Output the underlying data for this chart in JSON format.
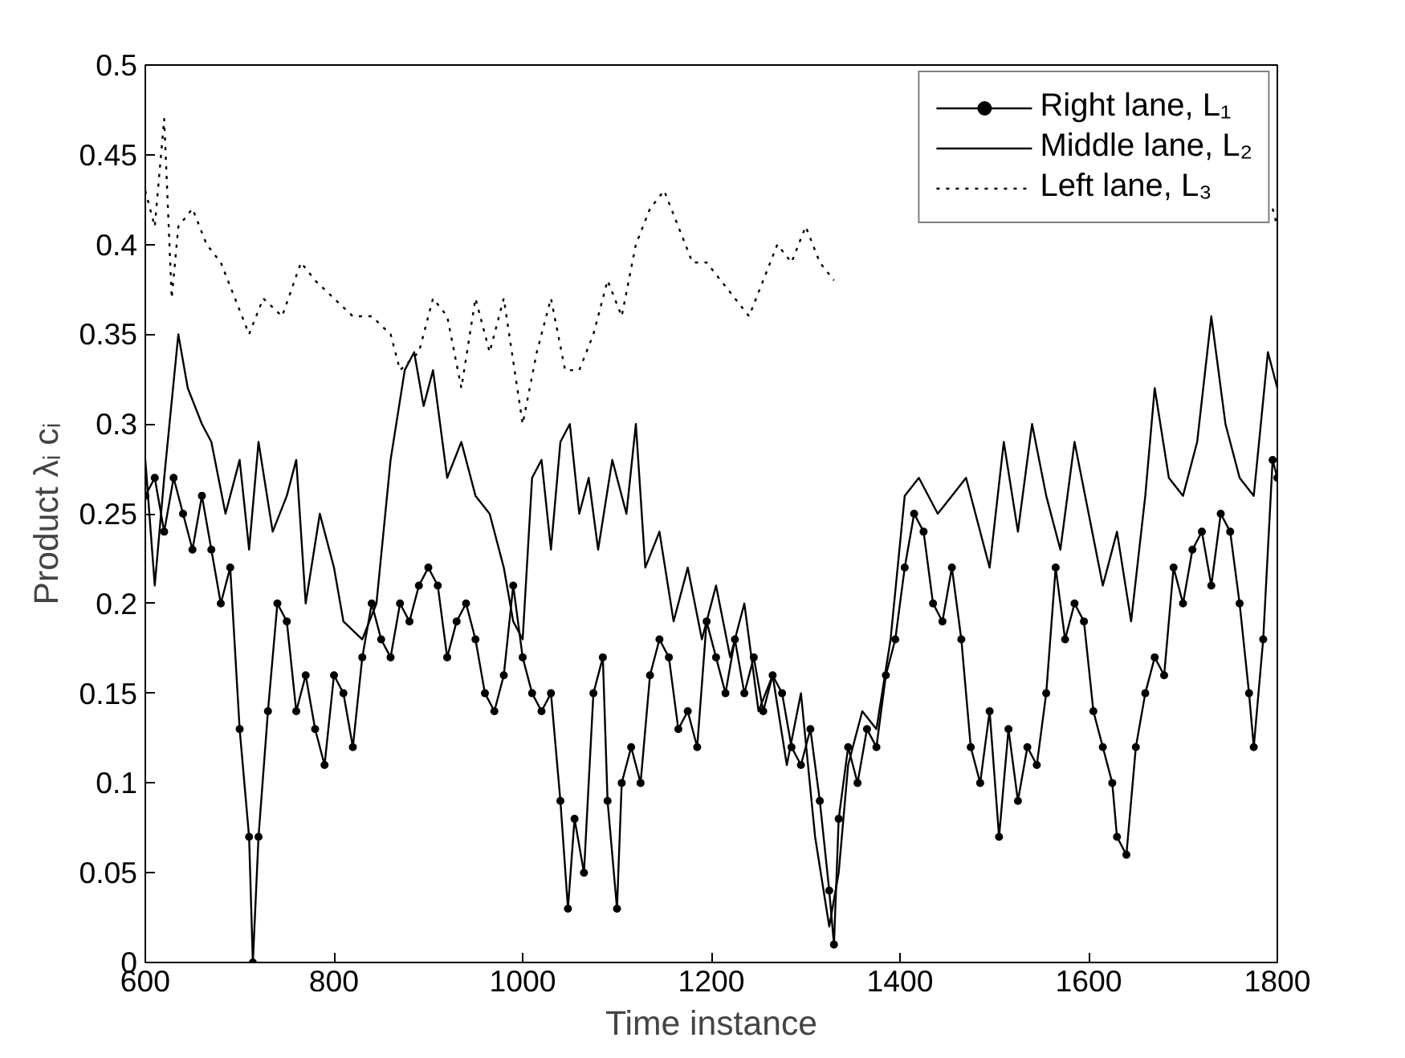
{
  "chart_data": {
    "type": "line",
    "xlabel": "Time instance",
    "ylabel": "Product λᵢ cᵢ",
    "xlim": [
      600,
      1800
    ],
    "ylim": [
      0,
      0.5
    ],
    "xticks": [
      600,
      800,
      1000,
      1200,
      1400,
      1600,
      1800
    ],
    "yticks": [
      0,
      0.05,
      0.1,
      0.15,
      0.2,
      0.25,
      0.3,
      0.35,
      0.4,
      0.45,
      0.5
    ],
    "grid": false,
    "legend": "top right",
    "series": [
      {
        "name": "Right lane, L₁",
        "color": "#000000",
        "marker": "circle",
        "line_style": "solid",
        "x": [
          600,
          610,
          620,
          630,
          640,
          650,
          660,
          670,
          680,
          690,
          700,
          710,
          714,
          720,
          730,
          740,
          750,
          760,
          770,
          780,
          790,
          800,
          810,
          820,
          830,
          840,
          850,
          860,
          870,
          880,
          890,
          900,
          910,
          920,
          930,
          940,
          950,
          960,
          970,
          980,
          990,
          1000,
          1010,
          1020,
          1030,
          1040,
          1048,
          1055,
          1065,
          1075,
          1085,
          1090,
          1100,
          1105,
          1115,
          1125,
          1135,
          1145,
          1155,
          1165,
          1175,
          1185,
          1195,
          1205,
          1215,
          1225,
          1235,
          1245,
          1255,
          1265,
          1275,
          1285,
          1295,
          1305,
          1315,
          1325,
          1330,
          1335,
          1345,
          1355,
          1365,
          1375,
          1385,
          1395,
          1405,
          1415,
          1425,
          1435,
          1445,
          1455,
          1465,
          1475,
          1485,
          1495,
          1505,
          1515,
          1525,
          1535,
          1545,
          1555,
          1565,
          1575,
          1585,
          1595,
          1605,
          1615,
          1625,
          1630,
          1640,
          1650,
          1660,
          1670,
          1680,
          1690,
          1700,
          1710,
          1720,
          1730,
          1740,
          1750,
          1760,
          1770,
          1775,
          1785,
          1795,
          1800
        ],
        "values": [
          0.26,
          0.27,
          0.24,
          0.27,
          0.25,
          0.23,
          0.26,
          0.23,
          0.2,
          0.22,
          0.13,
          0.07,
          0.0,
          0.07,
          0.14,
          0.2,
          0.19,
          0.14,
          0.16,
          0.13,
          0.11,
          0.16,
          0.15,
          0.12,
          0.17,
          0.2,
          0.18,
          0.17,
          0.2,
          0.19,
          0.21,
          0.22,
          0.21,
          0.17,
          0.19,
          0.2,
          0.18,
          0.15,
          0.14,
          0.16,
          0.21,
          0.17,
          0.15,
          0.14,
          0.15,
          0.09,
          0.03,
          0.08,
          0.05,
          0.15,
          0.17,
          0.09,
          0.03,
          0.1,
          0.12,
          0.1,
          0.16,
          0.18,
          0.17,
          0.13,
          0.14,
          0.12,
          0.19,
          0.17,
          0.15,
          0.18,
          0.15,
          0.17,
          0.14,
          0.16,
          0.15,
          0.12,
          0.11,
          0.13,
          0.09,
          0.04,
          0.01,
          0.08,
          0.12,
          0.1,
          0.13,
          0.12,
          0.16,
          0.18,
          0.22,
          0.25,
          0.24,
          0.2,
          0.19,
          0.22,
          0.18,
          0.12,
          0.1,
          0.14,
          0.07,
          0.13,
          0.09,
          0.12,
          0.11,
          0.15,
          0.22,
          0.18,
          0.2,
          0.19,
          0.14,
          0.12,
          0.1,
          0.07,
          0.06,
          0.12,
          0.15,
          0.17,
          0.16,
          0.22,
          0.2,
          0.23,
          0.24,
          0.21,
          0.25,
          0.24,
          0.2,
          0.15,
          0.12,
          0.18,
          0.28,
          0.27
        ]
      },
      {
        "name": "Middle lane, L₂",
        "color": "#000000",
        "marker": "none",
        "line_style": "solid",
        "x": [
          600,
          610,
          620,
          635,
          645,
          660,
          670,
          685,
          700,
          710,
          720,
          735,
          750,
          760,
          770,
          785,
          800,
          810,
          830,
          845,
          860,
          875,
          885,
          895,
          905,
          920,
          935,
          950,
          965,
          980,
          990,
          1000,
          1010,
          1020,
          1030,
          1040,
          1050,
          1060,
          1070,
          1080,
          1095,
          1110,
          1120,
          1130,
          1145,
          1160,
          1175,
          1190,
          1205,
          1220,
          1235,
          1250,
          1265,
          1280,
          1295,
          1310,
          1325,
          1335,
          1345,
          1360,
          1375,
          1390,
          1405,
          1420,
          1440,
          1455,
          1470,
          1480,
          1495,
          1510,
          1525,
          1540,
          1555,
          1570,
          1585,
          1600,
          1615,
          1630,
          1645,
          1660,
          1670,
          1685,
          1700,
          1715,
          1730,
          1745,
          1760,
          1775,
          1790,
          1800
        ],
        "values": [
          0.28,
          0.21,
          0.27,
          0.35,
          0.32,
          0.3,
          0.29,
          0.25,
          0.28,
          0.23,
          0.29,
          0.24,
          0.26,
          0.28,
          0.2,
          0.25,
          0.22,
          0.19,
          0.18,
          0.2,
          0.28,
          0.33,
          0.34,
          0.31,
          0.33,
          0.27,
          0.29,
          0.26,
          0.25,
          0.22,
          0.19,
          0.18,
          0.27,
          0.28,
          0.23,
          0.29,
          0.3,
          0.25,
          0.27,
          0.23,
          0.28,
          0.25,
          0.3,
          0.22,
          0.24,
          0.19,
          0.22,
          0.18,
          0.21,
          0.17,
          0.2,
          0.14,
          0.16,
          0.11,
          0.15,
          0.07,
          0.02,
          0.05,
          0.11,
          0.14,
          0.13,
          0.18,
          0.26,
          0.27,
          0.25,
          0.26,
          0.27,
          0.25,
          0.22,
          0.29,
          0.24,
          0.3,
          0.26,
          0.23,
          0.29,
          0.25,
          0.21,
          0.24,
          0.19,
          0.26,
          0.32,
          0.27,
          0.26,
          0.29,
          0.36,
          0.3,
          0.27,
          0.26,
          0.34,
          0.32
        ]
      },
      {
        "name": "Left lane, L₃",
        "color": "#000000",
        "marker": "none",
        "line_style": "dotted",
        "x": [
          600,
          610,
          620,
          628,
          635,
          650,
          665,
          680,
          695,
          710,
          725,
          745,
          765,
          780,
          800,
          820,
          840,
          860,
          870,
          890,
          905,
          920,
          935,
          950,
          965,
          980,
          1000,
          1015,
          1030,
          1045,
          1060,
          1075,
          1090,
          1105,
          1120,
          1135,
          1150,
          1165,
          1180,
          1195,
          1210,
          1225,
          1240,
          1255,
          1270,
          1285,
          1300,
          1315,
          1330,
          1500,
          1795,
          1800
        ],
        "values": [
          0.43,
          0.41,
          0.47,
          0.37,
          0.41,
          0.42,
          0.4,
          0.39,
          0.37,
          0.35,
          0.37,
          0.36,
          0.39,
          0.38,
          0.37,
          0.36,
          0.36,
          0.35,
          0.33,
          0.34,
          0.37,
          0.36,
          0.32,
          0.37,
          0.34,
          0.37,
          0.3,
          0.34,
          0.37,
          0.33,
          0.33,
          0.35,
          0.38,
          0.36,
          0.4,
          0.42,
          0.43,
          0.41,
          0.39,
          0.39,
          0.38,
          0.37,
          0.36,
          0.38,
          0.4,
          0.39,
          0.41,
          0.39,
          0.38,
          null,
          0.42,
          0.41
        ]
      }
    ]
  }
}
